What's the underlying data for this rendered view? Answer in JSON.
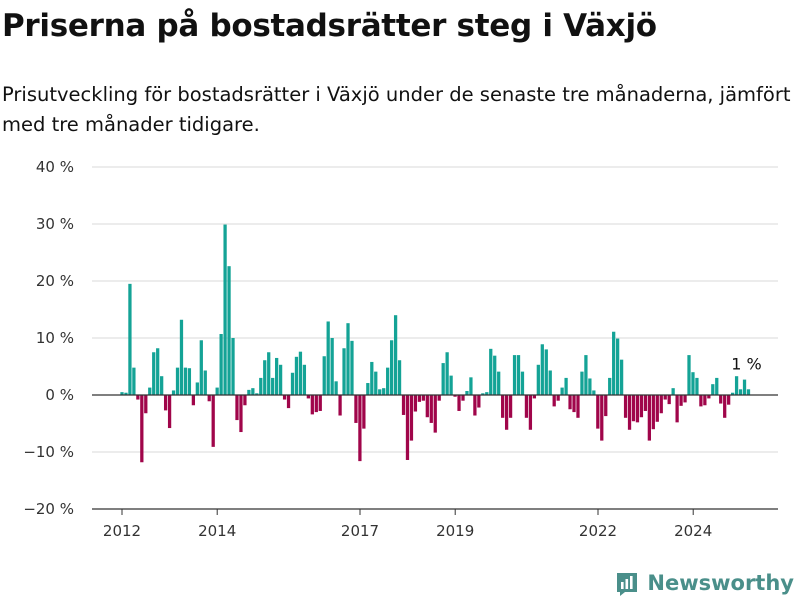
{
  "header": {
    "title": "Priserna på bostadsrätter steg i Växjö",
    "subtitle": "Prisutveckling för bostadsrätter i Växjö under de senaste tre månaderna, jämfört med tre månader tidigare."
  },
  "brand": {
    "name": "Newsworthy",
    "icon": "newsworthy-logo-icon"
  },
  "colors": {
    "positive": "#14a396",
    "negative": "#a0054a",
    "zero_line": "#333333",
    "grid": "#d9d9d9"
  },
  "chart_data": {
    "type": "bar",
    "unit": "%",
    "ylim": [
      -20,
      40
    ],
    "y_ticks": [
      -20,
      -10,
      0,
      10,
      20,
      30,
      40
    ],
    "y_tick_labels": [
      "−20 %",
      "−10 %",
      "0 %",
      "10 %",
      "20 %",
      "30 %",
      "40 %"
    ],
    "x_tick_labels": [
      "2012",
      "2014",
      "2017",
      "2019",
      "2022",
      "2024"
    ],
    "x_tick_positions": [
      2012.0,
      2014.0,
      2017.0,
      2019.0,
      2022.0,
      2024.0
    ],
    "x_start": 2012.0,
    "step_years": 0.0833,
    "grid": true,
    "last_value_label": "1 %",
    "series": [
      {
        "values": [
          0.5,
          0.4,
          19.5,
          4.8,
          -0.8,
          -11.8,
          -3.2,
          1.3,
          7.5,
          8.2,
          3.3,
          -2.7,
          -5.8,
          0.8,
          4.8,
          13.2,
          4.8,
          4.7,
          -1.8,
          2.2,
          9.6,
          4.3,
          -1.1,
          -9.1,
          1.3,
          10.7,
          29.9,
          22.6,
          10.0,
          -4.4,
          -6.5,
          -1.8,
          0.9,
          1.2,
          0.3,
          3.0,
          6.1,
          7.5,
          3.0,
          6.5,
          5.3,
          -0.8,
          -2.3,
          3.9,
          6.7,
          7.6,
          5.3,
          -0.6,
          -3.4,
          -3.0,
          -2.8,
          6.8,
          12.9,
          10.0,
          2.4,
          -3.6,
          8.2,
          12.6,
          9.5,
          -4.9,
          -11.6,
          -5.9,
          2.1,
          5.8,
          4.1,
          1.0,
          1.2,
          4.8,
          9.6,
          14.0,
          6.1,
          -3.5,
          -11.4,
          -8.0,
          -2.9,
          -1.2,
          -1.0,
          -3.9,
          -4.9,
          -6.6,
          -1.0,
          5.6,
          7.5,
          3.4,
          -0.3,
          -2.8,
          -1.0,
          0.7,
          3.1,
          -3.6,
          -2.2,
          0.3,
          0.5,
          8.1,
          6.9,
          4.1,
          -4.0,
          -6.1,
          -4.0,
          7.0,
          7.0,
          4.1,
          -4.0,
          -6.1,
          -0.6,
          5.3,
          8.9,
          8.0,
          4.3,
          -2.0,
          -1.0,
          1.3,
          3.0,
          -2.5,
          -3.0,
          -4.0,
          4.1,
          7.0,
          2.9,
          0.8,
          -5.9,
          -8.0,
          -3.7,
          3.0,
          11.1,
          9.9,
          6.2,
          -4.0,
          -6.1,
          -4.6,
          -4.8,
          -3.9,
          -2.8,
          -8.0,
          -6.0,
          -4.7,
          -3.2,
          -0.8,
          -1.6,
          1.2,
          -4.8,
          -1.9,
          -1.3,
          7.0,
          4.0,
          3.0,
          -2.0,
          -1.8,
          -0.6,
          1.9,
          3.0,
          -1.5,
          -4.0,
          -1.7,
          0.4,
          3.3,
          1.0,
          2.7,
          1.0
        ]
      }
    ]
  }
}
